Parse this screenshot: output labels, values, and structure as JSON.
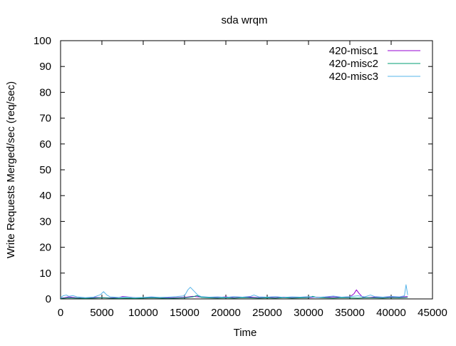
{
  "chart_data": {
    "type": "line",
    "title": "sda wrqm",
    "xlabel": "Time",
    "ylabel": "Write Requests Merged/sec (req/sec)",
    "xlim": [
      0,
      45000
    ],
    "ylim": [
      0,
      100
    ],
    "xticks": [
      0,
      5000,
      10000,
      15000,
      20000,
      25000,
      30000,
      35000,
      40000,
      45000
    ],
    "yticks": [
      0,
      10,
      20,
      30,
      40,
      50,
      60,
      70,
      80,
      90,
      100
    ],
    "grid": false,
    "legend_position": "top-right",
    "series": [
      {
        "name": "420-misc1",
        "color": "#9400d3",
        "x": [
          0,
          500,
          1000,
          2000,
          3000,
          4000,
          5000,
          6000,
          7000,
          7500,
          8000,
          9000,
          10000,
          11000,
          12000,
          13000,
          14000,
          15000,
          16000,
          17000,
          18000,
          19000,
          20000,
          21000,
          22000,
          23000,
          24000,
          25000,
          26000,
          27000,
          28000,
          29000,
          30000,
          31000,
          32000,
          33000,
          34000,
          35000,
          35500,
          35800,
          36100,
          36500,
          37000,
          38000,
          39000,
          40000,
          41000,
          42000
        ],
        "y": [
          0.3,
          0.5,
          0.8,
          0.4,
          0.3,
          0.6,
          0.5,
          0.4,
          0.5,
          0.9,
          0.8,
          0.5,
          0.4,
          0.6,
          0.5,
          0.4,
          0.5,
          0.6,
          1.0,
          0.7,
          0.5,
          0.6,
          0.8,
          0.5,
          0.6,
          0.7,
          0.5,
          0.6,
          0.5,
          0.7,
          0.5,
          0.6,
          0.5,
          0.7,
          0.6,
          0.8,
          0.6,
          0.8,
          2.0,
          3.5,
          2.2,
          0.8,
          0.5,
          0.7,
          0.6,
          0.8,
          0.7,
          0.9
        ]
      },
      {
        "name": "420-misc2",
        "color": "#009e73",
        "x": [
          0,
          1000,
          2000,
          3000,
          4000,
          5000,
          6000,
          7000,
          8000,
          9000,
          10000,
          11000,
          12000,
          13000,
          14000,
          15000,
          16000,
          16500,
          17000,
          18000,
          19000,
          20000,
          21000,
          22000,
          23000,
          24000,
          25000,
          26000,
          27000,
          28000,
          29000,
          30000,
          30500,
          31000,
          32000,
          33000,
          34000,
          35000,
          36000,
          37000,
          38000,
          39000,
          40000,
          41000,
          42000
        ],
        "y": [
          0.2,
          0.4,
          0.3,
          0.2,
          0.3,
          0.5,
          0.3,
          0.2,
          0.3,
          0.2,
          0.3,
          0.4,
          0.3,
          0.2,
          0.3,
          0.4,
          0.8,
          1.3,
          0.6,
          0.4,
          0.3,
          0.4,
          0.3,
          0.5,
          0.4,
          0.3,
          0.4,
          0.3,
          0.5,
          0.3,
          0.4,
          0.5,
          1.0,
          0.6,
          0.4,
          0.3,
          0.5,
          0.4,
          0.3,
          0.5,
          0.4,
          0.3,
          0.5,
          0.4,
          0.6
        ]
      },
      {
        "name": "420-misc3",
        "color": "#56b4e9",
        "x": [
          0,
          300,
          700,
          1000,
          1500,
          2000,
          3000,
          4000,
          4800,
          5200,
          5600,
          6000,
          7000,
          8000,
          9000,
          10000,
          11000,
          12000,
          13000,
          14000,
          15000,
          15400,
          15700,
          16100,
          16600,
          17000,
          18000,
          19000,
          20000,
          21000,
          22000,
          23000,
          23400,
          24000,
          25000,
          26000,
          27000,
          28000,
          29000,
          30000,
          31000,
          32000,
          33000,
          34000,
          35000,
          36000,
          36800,
          37500,
          38000,
          39000,
          40000,
          41000,
          41600,
          41800,
          42000
        ],
        "y": [
          0.5,
          1.2,
          1.5,
          1.0,
          1.3,
          0.8,
          0.5,
          0.7,
          1.6,
          2.8,
          1.5,
          0.8,
          0.6,
          0.7,
          0.5,
          0.6,
          0.8,
          0.6,
          0.7,
          0.9,
          1.2,
          3.5,
          4.5,
          3.2,
          1.5,
          0.9,
          0.7,
          0.8,
          0.6,
          0.9,
          0.7,
          1.0,
          1.5,
          0.8,
          0.7,
          0.9,
          0.6,
          0.8,
          0.7,
          0.9,
          0.6,
          0.8,
          1.1,
          0.7,
          0.9,
          1.2,
          0.8,
          1.5,
          0.9,
          0.7,
          1.0,
          0.8,
          1.2,
          5.5,
          1.5
        ]
      }
    ]
  }
}
